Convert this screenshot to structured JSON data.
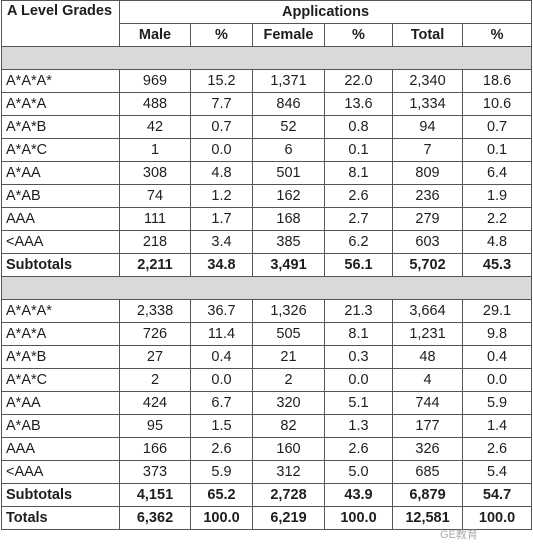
{
  "header": {
    "grade_col": "A Level Grades",
    "group": "Applications",
    "columns": [
      "Male",
      "%",
      "Female",
      "%",
      "Total",
      "%"
    ]
  },
  "section1": {
    "rows": [
      [
        "A*A*A*",
        "969",
        "15.2",
        "1,371",
        "22.0",
        "2,340",
        "18.6"
      ],
      [
        "A*A*A",
        "488",
        "7.7",
        "846",
        "13.6",
        "1,334",
        "10.6"
      ],
      [
        "A*A*B",
        "42",
        "0.7",
        "52",
        "0.8",
        "94",
        "0.7"
      ],
      [
        "A*A*C",
        "1",
        "0.0",
        "6",
        "0.1",
        "7",
        "0.1"
      ],
      [
        "A*AA",
        "308",
        "4.8",
        "501",
        "8.1",
        "809",
        "6.4"
      ],
      [
        "A*AB",
        "74",
        "1.2",
        "162",
        "2.6",
        "236",
        "1.9"
      ],
      [
        "AAA",
        "111",
        "1.7",
        "168",
        "2.7",
        "279",
        "2.2"
      ],
      [
        "<AAA",
        "218",
        "3.4",
        "385",
        "6.2",
        "603",
        "4.8"
      ]
    ],
    "subtotal": [
      "Subtotals",
      "2,211",
      "34.8",
      "3,491",
      "56.1",
      "5,702",
      "45.3"
    ]
  },
  "section2": {
    "rows": [
      [
        "A*A*A*",
        "2,338",
        "36.7",
        "1,326",
        "21.3",
        "3,664",
        "29.1"
      ],
      [
        "A*A*A",
        "726",
        "11.4",
        "505",
        "8.1",
        "1,231",
        "9.8"
      ],
      [
        "A*A*B",
        "27",
        "0.4",
        "21",
        "0.3",
        "48",
        "0.4"
      ],
      [
        "A*A*C",
        "2",
        "0.0",
        "2",
        "0.0",
        "4",
        "0.0"
      ],
      [
        "A*AA",
        "424",
        "6.7",
        "320",
        "5.1",
        "744",
        "5.9"
      ],
      [
        "A*AB",
        "95",
        "1.5",
        "82",
        "1.3",
        "177",
        "1.4"
      ],
      [
        "AAA",
        "166",
        "2.6",
        "160",
        "2.6",
        "326",
        "2.6"
      ],
      [
        "<AAA",
        "373",
        "5.9",
        "312",
        "5.0",
        "685",
        "5.4"
      ]
    ],
    "subtotal": [
      "Subtotals",
      "4,151",
      "65.2",
      "2,728",
      "43.9",
      "6,879",
      "54.7"
    ]
  },
  "totals": [
    "Totals",
    "6,362",
    "100.0",
    "6,219",
    "100.0",
    "12,581",
    "100.0"
  ],
  "watermark": "GE教育"
}
